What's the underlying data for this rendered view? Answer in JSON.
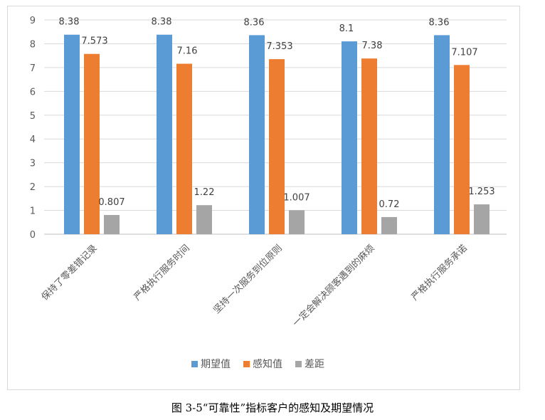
{
  "chart_data": {
    "type": "bar",
    "categories": [
      "保持了零差错记录",
      "严格执行服务时间",
      "坚持一次服务到位原则",
      "一定会解决顾客遇到的麻烦",
      "严格执行服务承诺"
    ],
    "series": [
      {
        "name": "期望值",
        "values": [
          8.38,
          8.38,
          8.36,
          8.1,
          8.36
        ],
        "labels": [
          "8.38",
          "8.38",
          "8.36",
          "8.1",
          "8.36"
        ],
        "color": "#5b9bd5"
      },
      {
        "name": "感知值",
        "values": [
          7.573,
          7.16,
          7.353,
          7.38,
          7.107
        ],
        "labels": [
          "7.573",
          "7.16",
          "7.353",
          "7.38",
          "7.107"
        ],
        "color": "#ed7d31"
      },
      {
        "name": "差距",
        "values": [
          0.807,
          1.22,
          1.007,
          0.72,
          1.253
        ],
        "labels": [
          "0.807",
          "1.22",
          "1.007",
          "0.72",
          "1.253"
        ],
        "color": "#a5a5a5"
      }
    ],
    "ylim": [
      0,
      9
    ],
    "yticks": [
      0,
      1,
      2,
      3,
      4,
      5,
      6,
      7,
      8,
      9
    ],
    "grid": true,
    "legend_position": "bottom"
  },
  "caption": "图 3-5“可靠性”指标客户的感知及期望情况"
}
